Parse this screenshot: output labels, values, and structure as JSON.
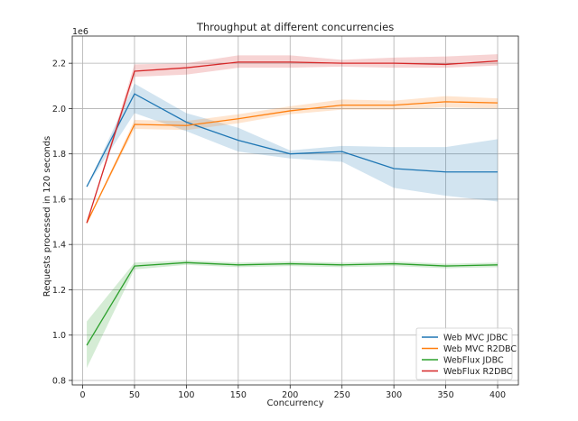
{
  "chart_data": {
    "type": "line",
    "title": "Throughput at different concurrencies",
    "xlabel": "Concurrency",
    "ylabel": "Requests processed in 120 seconds",
    "y_offset_text": "1e6",
    "xlim": [
      -10,
      420
    ],
    "ylim": [
      0.78,
      2.32
    ],
    "x_ticks": [
      0,
      50,
      100,
      150,
      200,
      250,
      300,
      350,
      400
    ],
    "y_ticks": [
      0.8,
      1.0,
      1.2,
      1.4,
      1.6,
      1.8,
      2.0,
      2.2
    ],
    "y_tick_labels": [
      "0.8",
      "1.0",
      "1.2",
      "1.4",
      "1.6",
      "1.8",
      "2.0",
      "2.2"
    ],
    "grid": true,
    "legend_position": "lower-right",
    "x": [
      4,
      50,
      100,
      150,
      200,
      250,
      300,
      350,
      400
    ],
    "series": [
      {
        "name": "Web MVC JDBC",
        "color": "#1f77b4",
        "values": [
          1.655,
          2.065,
          1.94,
          1.86,
          1.8,
          1.81,
          1.735,
          1.72,
          1.72
        ],
        "lower": [
          1.655,
          1.98,
          1.9,
          1.81,
          1.78,
          1.765,
          1.65,
          1.615,
          1.59
        ],
        "upper": [
          1.655,
          2.11,
          1.98,
          1.915,
          1.815,
          1.835,
          1.83,
          1.83,
          1.865
        ]
      },
      {
        "name": "Web MVC R2DBC",
        "color": "#ff7f0e",
        "values": [
          1.495,
          1.93,
          1.925,
          1.955,
          1.99,
          2.015,
          2.015,
          2.03,
          2.025
        ],
        "lower": [
          1.495,
          1.91,
          1.905,
          1.935,
          1.975,
          1.995,
          1.995,
          2.005,
          2.0
        ],
        "upper": [
          1.495,
          1.95,
          1.945,
          1.975,
          2.01,
          2.04,
          2.035,
          2.055,
          2.045
        ]
      },
      {
        "name": "WebFlux JDBC",
        "color": "#2ca02c",
        "values": [
          0.955,
          1.305,
          1.32,
          1.31,
          1.315,
          1.31,
          1.315,
          1.305,
          1.31
        ],
        "lower": [
          0.855,
          1.29,
          1.31,
          1.3,
          1.305,
          1.3,
          1.305,
          1.295,
          1.3
        ],
        "upper": [
          1.06,
          1.32,
          1.33,
          1.32,
          1.325,
          1.32,
          1.325,
          1.315,
          1.32
        ]
      },
      {
        "name": "WebFlux R2DBC",
        "color": "#d62728",
        "values": [
          1.495,
          2.165,
          2.18,
          2.205,
          2.205,
          2.2,
          2.2,
          2.195,
          2.21
        ],
        "lower": [
          1.495,
          2.14,
          2.15,
          2.18,
          2.18,
          2.185,
          2.18,
          2.18,
          2.19
        ],
        "upper": [
          1.495,
          2.195,
          2.2,
          2.235,
          2.235,
          2.215,
          2.225,
          2.23,
          2.24
        ]
      }
    ]
  }
}
